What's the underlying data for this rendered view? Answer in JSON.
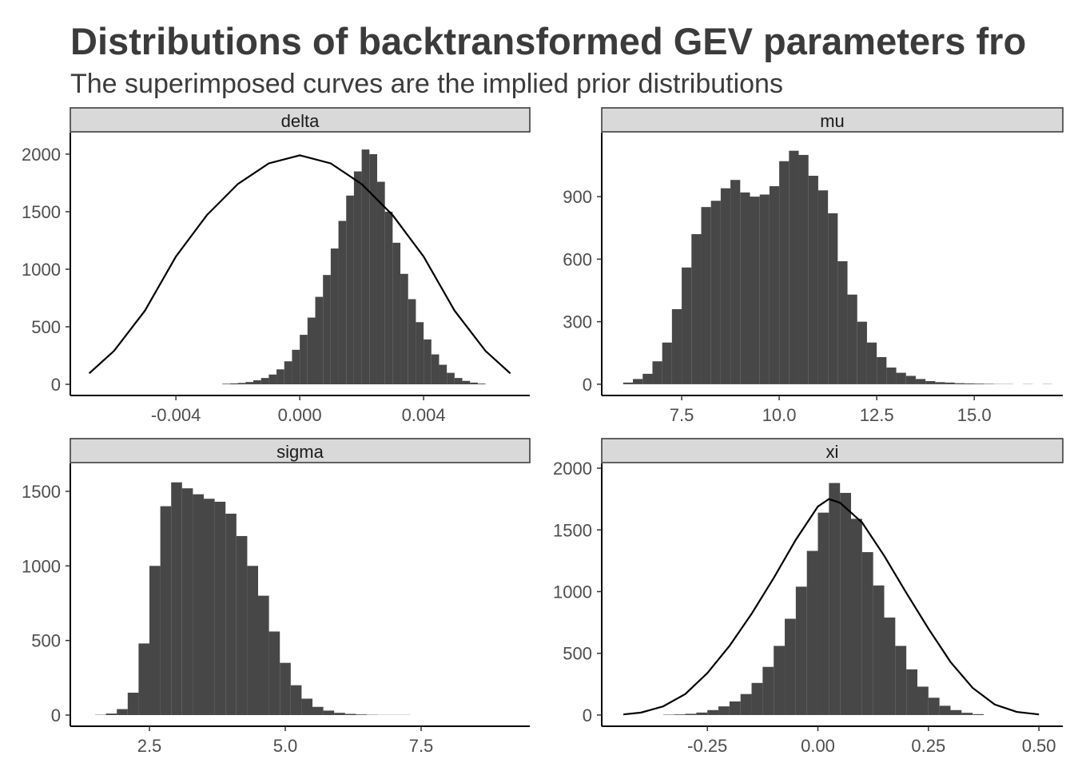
{
  "title": "Distributions of backtransformed GEV parameters fro",
  "subtitle": "The superimposed curves are the implied prior distributions",
  "chart_data": [
    {
      "type": "histogram",
      "title": "delta",
      "color": "#474747",
      "bins": [
        -0.0025,
        -0.00225,
        -0.002,
        -0.00175,
        -0.0015,
        -0.00125,
        -0.001,
        -0.00075,
        -0.0005,
        -0.00025,
        0,
        0.00025,
        0.0005,
        0.00075,
        0.001,
        0.00125,
        0.0015,
        0.00175,
        0.002,
        0.00225,
        0.0025,
        0.00275,
        0.003,
        0.00325,
        0.0035,
        0.00375,
        0.004,
        0.00425,
        0.0045,
        0.00475,
        0.005,
        0.00525,
        0.0055,
        0.00575,
        0.006
      ],
      "values": [
        5,
        8,
        12,
        20,
        35,
        55,
        85,
        130,
        200,
        300,
        430,
        580,
        760,
        950,
        1180,
        1420,
        1640,
        1850,
        2040,
        2000,
        1760,
        1500,
        1230,
        960,
        740,
        540,
        390,
        260,
        170,
        100,
        55,
        30,
        15,
        6
      ],
      "curve": {
        "color": "#000000",
        "x": [
          -0.0068,
          -0.006,
          -0.005,
          -0.004,
          -0.003,
          -0.002,
          -0.001,
          0,
          0.001,
          0.002,
          0.003,
          0.004,
          0.005,
          0.006,
          0.0068
        ],
        "y": [
          95,
          290,
          640,
          1110,
          1470,
          1740,
          1920,
          1990,
          1920,
          1740,
          1470,
          1110,
          640,
          290,
          95
        ]
      },
      "xlim": [
        -0.00741,
        0.00743
      ],
      "ylim": [
        -97,
        2187
      ],
      "xticks": [
        -0.004,
        {
          "value": 0,
          "label": "0.000"
        },
        0.004
      ],
      "yticks": [
        0,
        500,
        1000,
        1500,
        2000
      ]
    },
    {
      "type": "histogram",
      "title": "mu",
      "color": "#474747",
      "bins": [
        6,
        6.25,
        6.5,
        6.75,
        7,
        7.25,
        7.5,
        7.75,
        8,
        8.25,
        8.5,
        8.75,
        9,
        9.25,
        9.5,
        9.75,
        10,
        10.25,
        10.5,
        10.75,
        11,
        11.25,
        11.5,
        11.75,
        12,
        12.25,
        12.5,
        12.75,
        13,
        13.25,
        13.5,
        13.75,
        14,
        14.25,
        14.5,
        14.75,
        15,
        15.25,
        15.5,
        15.75,
        16,
        16.25,
        16.5,
        16.75,
        17
      ],
      "values": [
        8,
        25,
        50,
        110,
        200,
        360,
        560,
        720,
        850,
        880,
        940,
        980,
        920,
        900,
        910,
        950,
        1070,
        1120,
        1100,
        1000,
        930,
        820,
        590,
        430,
        300,
        200,
        130,
        80,
        55,
        40,
        25,
        15,
        10,
        8,
        5,
        4,
        3,
        2,
        1,
        1,
        0,
        1,
        0,
        1
      ],
      "xlim": [
        5.45,
        17.27
      ],
      "ylim": [
        -54,
        1207
      ],
      "xticks": [
        7.5,
        {
          "value": 10,
          "label": "10.0"
        },
        12.5,
        {
          "value": 15,
          "label": "15.0"
        }
      ],
      "yticks": [
        0,
        300,
        600,
        900
      ]
    },
    {
      "type": "histogram",
      "title": "sigma",
      "color": "#474747",
      "bins": [
        1.5,
        1.7,
        1.9,
        2.1,
        2.3,
        2.5,
        2.7,
        2.9,
        3.1,
        3.3,
        3.5,
        3.7,
        3.9,
        4.1,
        4.3,
        4.5,
        4.7,
        4.9,
        5.1,
        5.3,
        5.5,
        5.7,
        5.9,
        6.1,
        6.3,
        6.5,
        6.7,
        6.9,
        7.1,
        7.3,
        7.5
      ],
      "values": [
        2,
        10,
        40,
        150,
        480,
        1000,
        1400,
        1560,
        1520,
        1480,
        1450,
        1430,
        1350,
        1200,
        1000,
        800,
        560,
        350,
        200,
        110,
        55,
        30,
        15,
        8,
        4,
        2,
        1,
        1,
        1,
        0
      ],
      "xlim": [
        1.044,
        9.5
      ],
      "ylim": [
        -75,
        1687
      ],
      "xticks": [
        2.5,
        {
          "value": 5,
          "label": "5.0"
        },
        7.5
      ],
      "yticks": [
        0,
        500,
        1000,
        1500
      ]
    },
    {
      "type": "histogram",
      "title": "xi",
      "color": "#474747",
      "bins": [
        -0.35,
        -0.325,
        -0.3,
        -0.275,
        -0.25,
        -0.225,
        -0.2,
        -0.175,
        -0.15,
        -0.125,
        -0.1,
        -0.075,
        -0.05,
        -0.025,
        0,
        0.025,
        0.05,
        0.075,
        0.1,
        0.125,
        0.15,
        0.175,
        0.2,
        0.225,
        0.25,
        0.275,
        0.3,
        0.325,
        0.35,
        0.375
      ],
      "values": [
        3,
        5,
        10,
        20,
        40,
        70,
        110,
        170,
        260,
        390,
        560,
        780,
        1040,
        1330,
        1640,
        1880,
        1800,
        1590,
        1320,
        1050,
        790,
        560,
        370,
        230,
        140,
        75,
        40,
        18,
        7
      ],
      "curve": {
        "color": "#000000",
        "x": [
          -0.44,
          -0.4,
          -0.35,
          -0.3,
          -0.25,
          -0.2,
          -0.15,
          -0.1,
          -0.05,
          0,
          0.025,
          0.05,
          0.1,
          0.15,
          0.2,
          0.25,
          0.3,
          0.35,
          0.4,
          0.45,
          0.5
        ],
        "y": [
          5,
          20,
          70,
          170,
          340,
          560,
          820,
          1110,
          1420,
          1690,
          1750,
          1720,
          1560,
          1290,
          990,
          700,
          430,
          220,
          85,
          25,
          5
        ]
      },
      "xlim": [
        -0.489,
        0.554
      ],
      "ylim": [
        -91,
        2039
      ],
      "xticks": [
        -0.25,
        {
          "value": 0,
          "label": "0.00"
        },
        0.25,
        {
          "value": 0.5,
          "label": "0.50"
        }
      ],
      "yticks": [
        0,
        500,
        1000,
        1500,
        2000
      ]
    }
  ]
}
